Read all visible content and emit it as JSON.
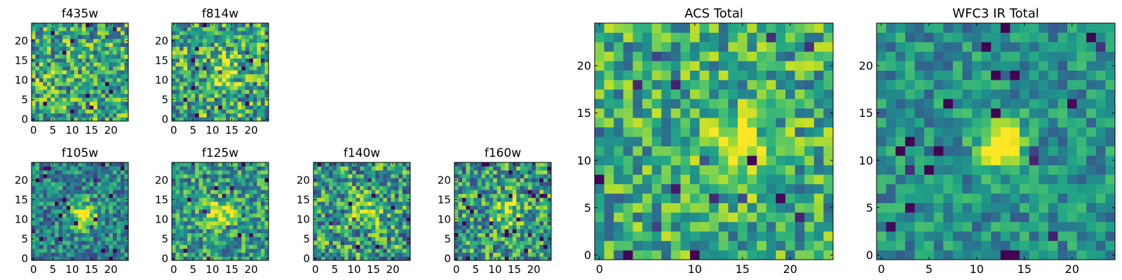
{
  "chart_data": [
    {
      "type": "heatmap",
      "title": "f435w",
      "xlabel": "",
      "ylabel": "",
      "size": 25,
      "xlim": [
        0,
        25
      ],
      "ylim": [
        0,
        25
      ],
      "xticks": [
        0,
        5,
        10,
        15,
        20
      ],
      "yticks": [
        0,
        5,
        10,
        15,
        20
      ],
      "colormap": "viridis",
      "seed": 11,
      "peak": {
        "x": 12,
        "y": 12,
        "amp": 0.0,
        "sigma": 3
      },
      "noise": 0.72,
      "background": 0.6
    },
    {
      "type": "heatmap",
      "title": "f814w",
      "xlabel": "",
      "ylabel": "",
      "size": 25,
      "xlim": [
        0,
        25
      ],
      "ylim": [
        0,
        25
      ],
      "xticks": [
        0,
        5,
        10,
        15,
        20
      ],
      "yticks": [
        0,
        5,
        10,
        15,
        20
      ],
      "colormap": "viridis",
      "seed": 23,
      "peak": {
        "x": 13,
        "y": 12,
        "amp": 0.25,
        "sigma": 3
      },
      "noise": 0.72,
      "background": 0.6
    },
    {
      "type": "heatmap",
      "title": "f105w",
      "xlabel": "",
      "ylabel": "",
      "size": 25,
      "xlim": [
        0,
        25
      ],
      "ylim": [
        0,
        25
      ],
      "xticks": [
        0,
        5,
        10,
        15,
        20
      ],
      "yticks": [
        0,
        5,
        10,
        15,
        20
      ],
      "colormap": "viridis",
      "seed": 37,
      "peak": {
        "x": 13,
        "y": 11,
        "amp": 0.55,
        "sigma": 2.5
      },
      "noise": 0.55,
      "background": 0.45
    },
    {
      "type": "heatmap",
      "title": "f125w",
      "xlabel": "",
      "ylabel": "",
      "size": 25,
      "xlim": [
        0,
        25
      ],
      "ylim": [
        0,
        25
      ],
      "xticks": [
        0,
        5,
        10,
        15,
        20
      ],
      "yticks": [
        0,
        5,
        10,
        15,
        20
      ],
      "colormap": "viridis",
      "seed": 41,
      "peak": {
        "x": 12,
        "y": 11,
        "amp": 0.45,
        "sigma": 2.5
      },
      "noise": 0.6,
      "background": 0.55
    },
    {
      "type": "heatmap",
      "title": "f140w",
      "xlabel": "",
      "ylabel": "",
      "size": 25,
      "xlim": [
        0,
        25
      ],
      "ylim": [
        0,
        25
      ],
      "xticks": [
        0,
        5,
        10,
        15,
        20
      ],
      "yticks": [
        0,
        5,
        10,
        15,
        20
      ],
      "colormap": "viridis",
      "seed": 53,
      "peak": {
        "x": 14,
        "y": 12,
        "amp": 0.4,
        "sigma": 2.5
      },
      "noise": 0.75,
      "background": 0.55
    },
    {
      "type": "heatmap",
      "title": "f160w",
      "xlabel": "",
      "ylabel": "",
      "size": 25,
      "xlim": [
        0,
        25
      ],
      "ylim": [
        0,
        25
      ],
      "xticks": [
        0,
        5,
        10,
        15,
        20
      ],
      "yticks": [
        0,
        5,
        10,
        15,
        20
      ],
      "colormap": "viridis",
      "seed": 67,
      "peak": {
        "x": 13,
        "y": 12,
        "amp": 0.35,
        "sigma": 2.5
      },
      "noise": 0.7,
      "background": 0.55
    },
    {
      "type": "heatmap",
      "title": "ACS Total",
      "xlabel": "",
      "ylabel": "",
      "size": 25,
      "xlim": [
        0,
        25
      ],
      "ylim": [
        0,
        25
      ],
      "xticks": [
        0,
        10,
        15,
        20
      ],
      "yticks": [
        0,
        5,
        10,
        15,
        20
      ],
      "colormap": "viridis",
      "seed": 79,
      "peak": {
        "x": 14,
        "y": 12,
        "amp": 0.3,
        "sigma": 2.5
      },
      "noise": 0.6,
      "background": 0.62
    },
    {
      "type": "heatmap",
      "title": "WFC3 IR Total",
      "xlabel": "",
      "ylabel": "",
      "size": 25,
      "xlim": [
        0,
        25
      ],
      "ylim": [
        0,
        25
      ],
      "xticks": [
        0,
        5,
        10,
        15,
        20
      ],
      "yticks": [
        0,
        5,
        10,
        15,
        20
      ],
      "colormap": "viridis",
      "seed": 97,
      "peak": {
        "x": 12.5,
        "y": 11.5,
        "amp": 0.75,
        "sigma": 1.6
      },
      "noise": 0.42,
      "background": 0.5
    }
  ]
}
